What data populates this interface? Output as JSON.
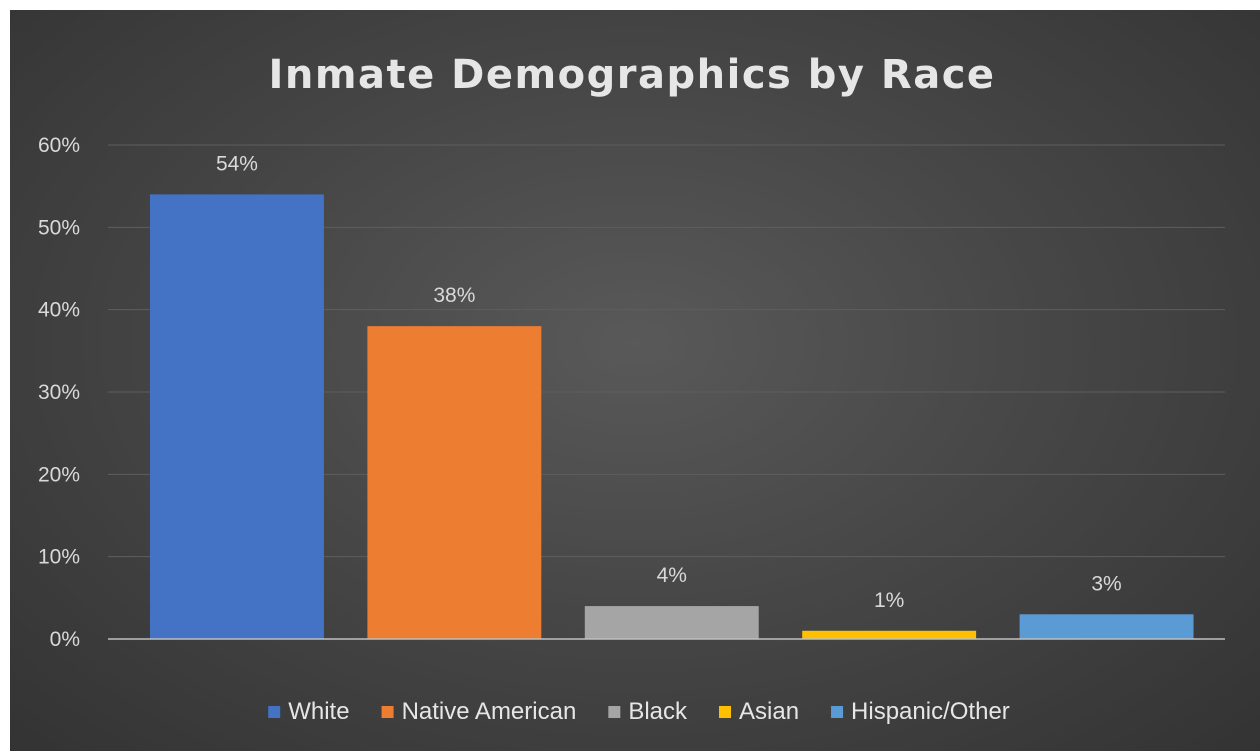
{
  "chart_data": {
    "type": "bar",
    "title": "Inmate Demographics by Race",
    "categories": [
      "White",
      "Native American",
      "Black",
      "Asian",
      "Hispanic/Other"
    ],
    "values": [
      54,
      38,
      4,
      1,
      3
    ],
    "data_labels": [
      "54%",
      "38%",
      "4%",
      "1%",
      "3%"
    ],
    "colors": [
      "#4472c4",
      "#ed7d31",
      "#a5a5a5",
      "#ffc000",
      "#5b9bd5"
    ],
    "ylim": [
      0,
      60
    ],
    "yticks": [
      0,
      10,
      20,
      30,
      40,
      50,
      60
    ],
    "ytick_labels": [
      "0%",
      "10%",
      "20%",
      "30%",
      "40%",
      "50%",
      "60%"
    ],
    "grid": true,
    "legend_position": "bottom",
    "legend": [
      "White",
      "Native American",
      "Black",
      "Asian",
      "Hispanic/Other"
    ]
  }
}
